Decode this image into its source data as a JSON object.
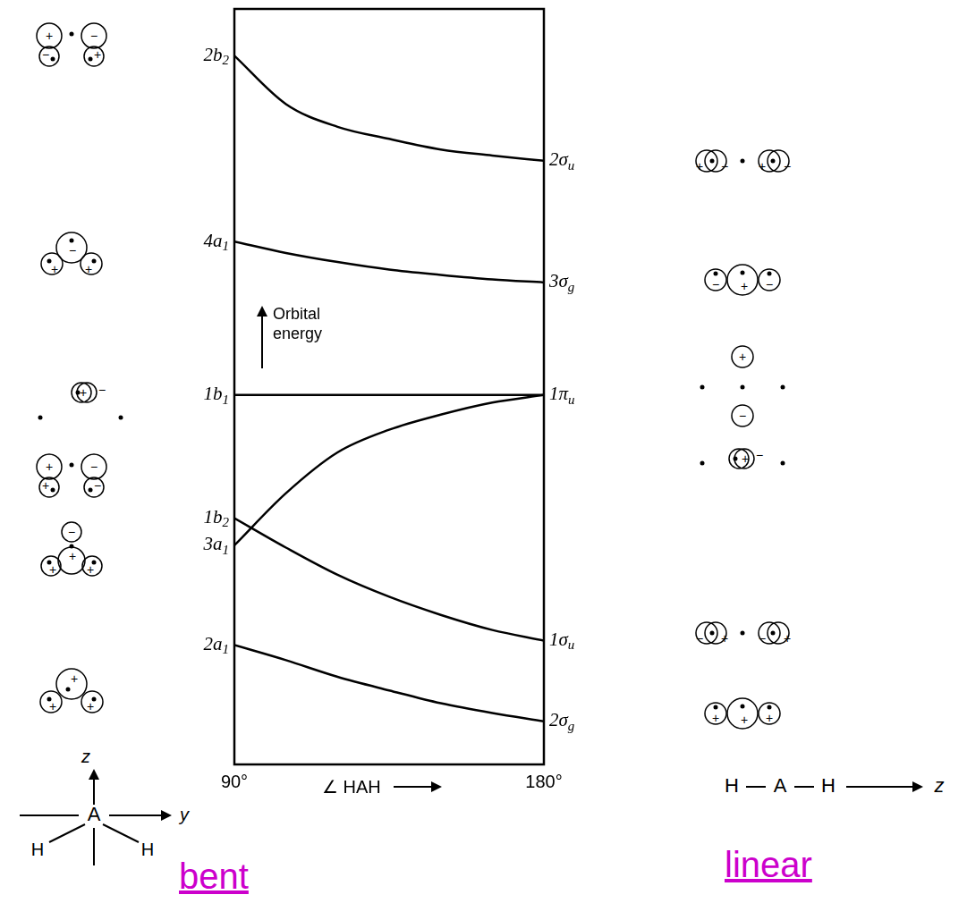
{
  "chart_data": {
    "type": "line",
    "x": [
      90,
      105,
      120,
      135,
      150,
      165,
      180
    ],
    "xlim": [
      90,
      180
    ],
    "xticks": [
      {
        "value": 90,
        "label": "90°"
      },
      {
        "value": 180,
        "label": "180°"
      }
    ],
    "ylim": [
      0,
      100
    ],
    "tick_labels": "x",
    "grid": false,
    "x_label": "∠ HAH",
    "y_label": "Orbital energy",
    "series": [
      {
        "name": "2b2",
        "linear_label": "2σu",
        "color": "#000000",
        "values": [
          93.8,
          87.4,
          84.4,
          82.8,
          81.4,
          80.6,
          79.9
        ],
        "bent_signs": [
          "+",
          "−",
          "−",
          "+"
        ],
        "linear_signs": [
          "+",
          "−",
          "+",
          "−"
        ]
      },
      {
        "name": "4a1",
        "linear_label": "3σg",
        "color": "#000000",
        "values": [
          69.2,
          67.7,
          66.5,
          65.5,
          64.8,
          64.2,
          63.8
        ],
        "bent_signs": [
          "−",
          "+",
          "+"
        ],
        "linear_signs": [
          "−",
          "+",
          "−"
        ]
      },
      {
        "name": "1b1",
        "linear_label": "1πu",
        "color": "#000000",
        "values": [
          48.9,
          48.9,
          48.9,
          48.9,
          48.9,
          48.9,
          48.9
        ],
        "bent_signs": [
          "+",
          "−"
        ],
        "linear_signs": [
          "+",
          "−",
          "+",
          "−"
        ]
      },
      {
        "name": "1b2",
        "linear_label": "1σu",
        "color": "#000000",
        "values": [
          32.6,
          28.7,
          25.1,
          22.2,
          19.8,
          17.8,
          16.4
        ],
        "bent_signs": [
          "+",
          "−",
          "+",
          "−"
        ],
        "linear_signs": [
          "−",
          "+",
          "−",
          "+"
        ]
      },
      {
        "name": "3a1",
        "color": "#000000",
        "values": [
          29.0,
          35.9,
          41.3,
          44.3,
          46.3,
          47.9,
          48.9
        ],
        "bent_signs": [
          "−",
          "+",
          "+",
          "+"
        ]
      },
      {
        "name": "2a1",
        "linear_label": "2σg",
        "color": "#000000",
        "values": [
          15.8,
          13.8,
          11.6,
          9.8,
          8.1,
          6.8,
          5.7
        ],
        "bent_signs": [
          "+",
          "+",
          "+"
        ],
        "linear_signs": [
          "+",
          "+",
          "+"
        ]
      }
    ],
    "bent_axes": {
      "vertical": "z",
      "horizontal": "y",
      "atoms": [
        "H",
        "A",
        "H"
      ]
    },
    "linear_axes": {
      "axis": "z",
      "atoms": [
        "H",
        "A",
        "H"
      ]
    },
    "geometry_labels": [
      "bent",
      "linear"
    ]
  }
}
